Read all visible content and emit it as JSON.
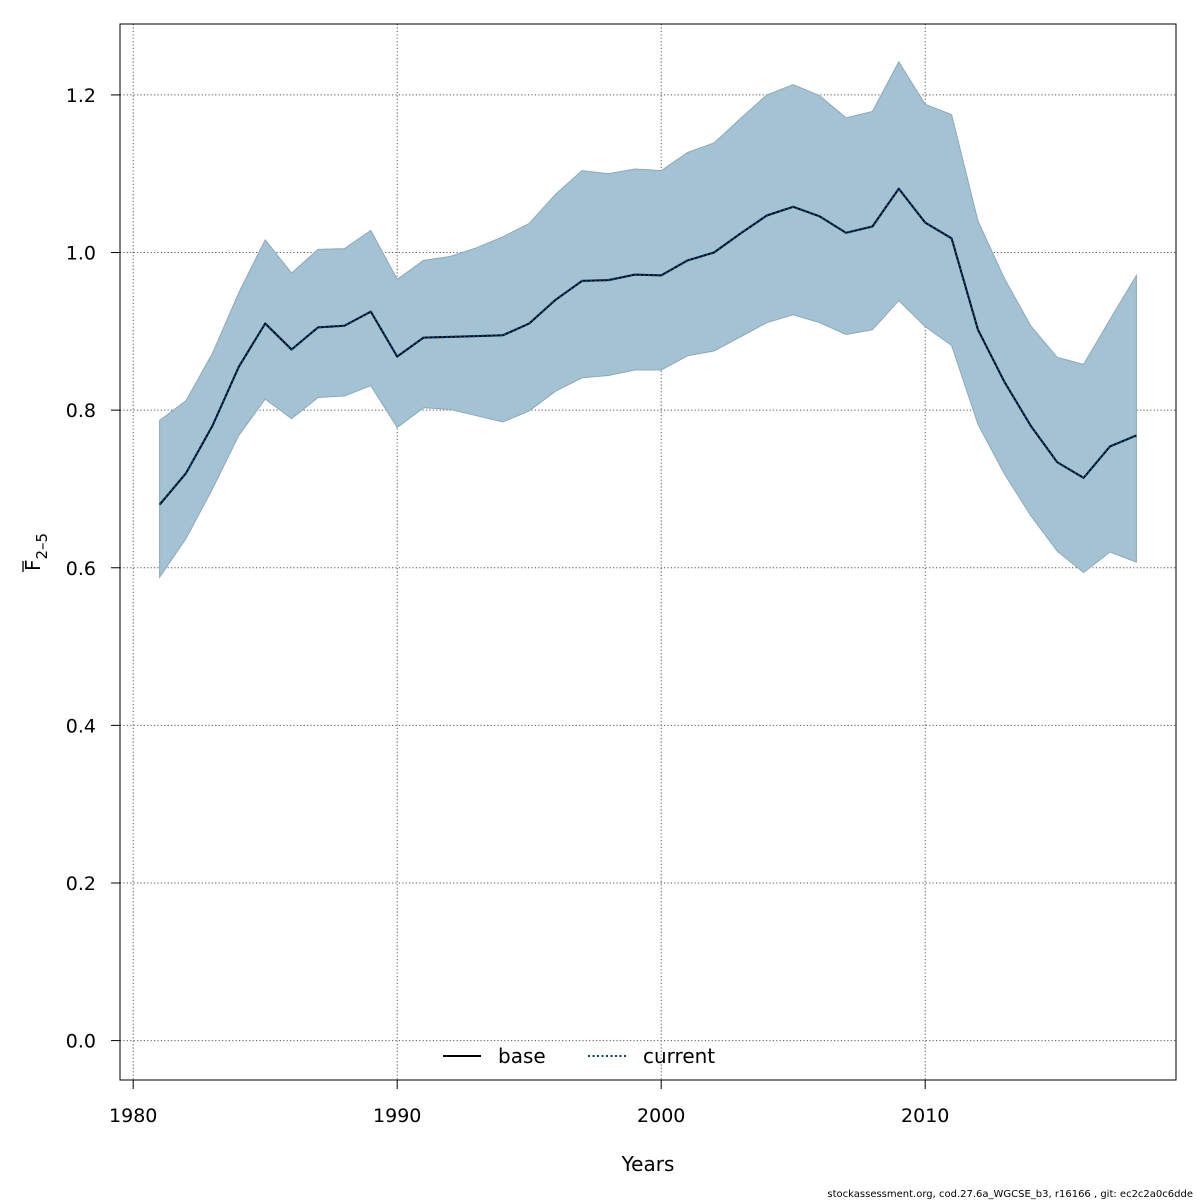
{
  "chart_data": {
    "type": "line",
    "title": "",
    "xlabel": "Years",
    "ylabel_main": "F",
    "ylabel_sub": "2–5",
    "xlim": [
      1979.5,
      2019.5
    ],
    "ylim": [
      -0.05,
      1.29
    ],
    "x_ticks": [
      1980,
      1990,
      2000,
      2010
    ],
    "x_tick_labels": [
      "1980",
      "1990",
      "2000",
      "2010"
    ],
    "y_ticks": [
      0.0,
      0.2,
      0.4,
      0.6,
      0.8,
      1.0,
      1.2
    ],
    "y_tick_labels": [
      "0.0",
      "0.2",
      "0.4",
      "0.6",
      "0.8",
      "1.0",
      "1.2"
    ],
    "grid": true,
    "legend_position": "bottom-center",
    "x": [
      1981,
      1982,
      1983,
      1984,
      1985,
      1986,
      1987,
      1988,
      1989,
      1990,
      1991,
      1992,
      1993,
      1994,
      1995,
      1996,
      1997,
      1998,
      1999,
      2000,
      2001,
      2002,
      2003,
      2004,
      2005,
      2006,
      2007,
      2008,
      2009,
      2010,
      2011,
      2012,
      2013,
      2014,
      2015,
      2016,
      2017,
      2018
    ],
    "band": {
      "lower": [
        0.588,
        0.637,
        0.7,
        0.768,
        0.814,
        0.789,
        0.816,
        0.818,
        0.831,
        0.778,
        0.803,
        0.801,
        0.793,
        0.785,
        0.799,
        0.824,
        0.841,
        0.844,
        0.851,
        0.851,
        0.869,
        0.875,
        0.893,
        0.911,
        0.921,
        0.911,
        0.896,
        0.902,
        0.939,
        0.906,
        0.882,
        0.782,
        0.719,
        0.666,
        0.621,
        0.594,
        0.62,
        0.607
      ],
      "upper": [
        0.787,
        0.812,
        0.872,
        0.949,
        1.016,
        0.974,
        1.004,
        1.005,
        1.028,
        0.966,
        0.99,
        0.995,
        1.006,
        1.02,
        1.037,
        1.074,
        1.104,
        1.1,
        1.106,
        1.104,
        1.127,
        1.139,
        1.17,
        1.2,
        1.213,
        1.199,
        1.171,
        1.179,
        1.242,
        1.188,
        1.175,
        1.04,
        0.967,
        0.907,
        0.867,
        0.858,
        0.915,
        0.971
      ]
    },
    "series": [
      {
        "name": "base",
        "line_style": "solid",
        "color": "#000000",
        "values": [
          0.68,
          0.72,
          0.78,
          0.855,
          0.91,
          0.877,
          0.905,
          0.907,
          0.925,
          0.868,
          0.892,
          0.893,
          0.894,
          0.895,
          0.91,
          0.94,
          0.964,
          0.965,
          0.972,
          0.971,
          0.99,
          1.0,
          1.024,
          1.047,
          1.058,
          1.046,
          1.025,
          1.033,
          1.081,
          1.038,
          1.018,
          0.902,
          0.836,
          0.78,
          0.734,
          0.714,
          0.754,
          0.768
        ]
      },
      {
        "name": "current",
        "line_style": "dotted",
        "color": "#00467F",
        "values": [
          0.68,
          0.72,
          0.78,
          0.855,
          0.91,
          0.877,
          0.905,
          0.907,
          0.925,
          0.868,
          0.892,
          0.893,
          0.894,
          0.895,
          0.91,
          0.94,
          0.964,
          0.965,
          0.972,
          0.971,
          0.99,
          1.0,
          1.024,
          1.047,
          1.058,
          1.046,
          1.025,
          1.033,
          1.081,
          1.038,
          1.018,
          0.902,
          0.836,
          0.78,
          0.734,
          0.714,
          0.754,
          0.768
        ]
      }
    ],
    "colors": {
      "band_fill": "#A3C3D5",
      "band_edge": "#8EA8B8",
      "grid": "#555555"
    },
    "legend": [
      {
        "label": "base"
      },
      {
        "label": "current"
      }
    ]
  },
  "footer": "stockassessment.org, cod.27.6a_WGCSE_b3, r16166 , git: ec2c2a0c6dde"
}
